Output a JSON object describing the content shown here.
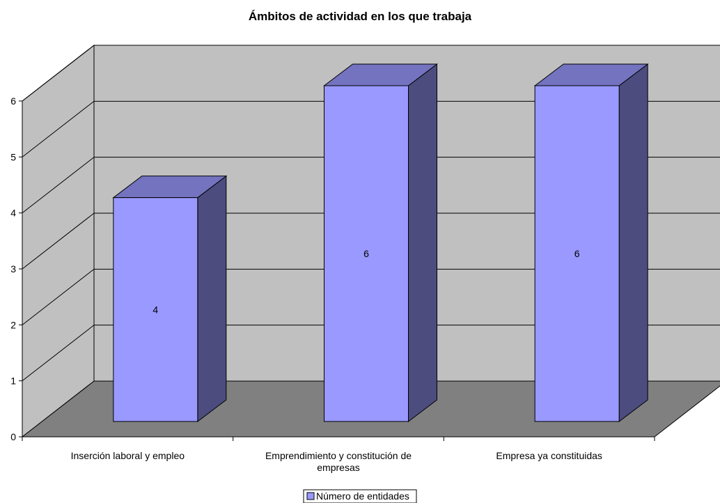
{
  "chart_data": {
    "type": "bar",
    "title": "Ámbitos de actividad en los que trabaja",
    "xlabel": "",
    "ylabel": "",
    "categories": [
      [
        "Inserción laboral y empleo"
      ],
      [
        "Emprendimiento y constitución de",
        "empresas"
      ],
      [
        "Empresa ya constituidas"
      ]
    ],
    "series": [
      {
        "name": "Número de entidades",
        "values": [
          4,
          6,
          6
        ]
      }
    ],
    "data_labels": [
      "4",
      "6",
      "6"
    ],
    "ylim": [
      0,
      6
    ],
    "yticks": [
      "0",
      "1",
      "2",
      "3",
      "4",
      "5",
      "6"
    ],
    "grid": true,
    "style": "3d-column",
    "legend_position": "bottom"
  },
  "colors": {
    "bar_front": "#9999ff",
    "bar_top": "#7373c0",
    "bar_side": "#4c4c7f",
    "back_wall": "#c0c0c0",
    "side_wall": "#c0c0c0",
    "floor": "#808080"
  }
}
